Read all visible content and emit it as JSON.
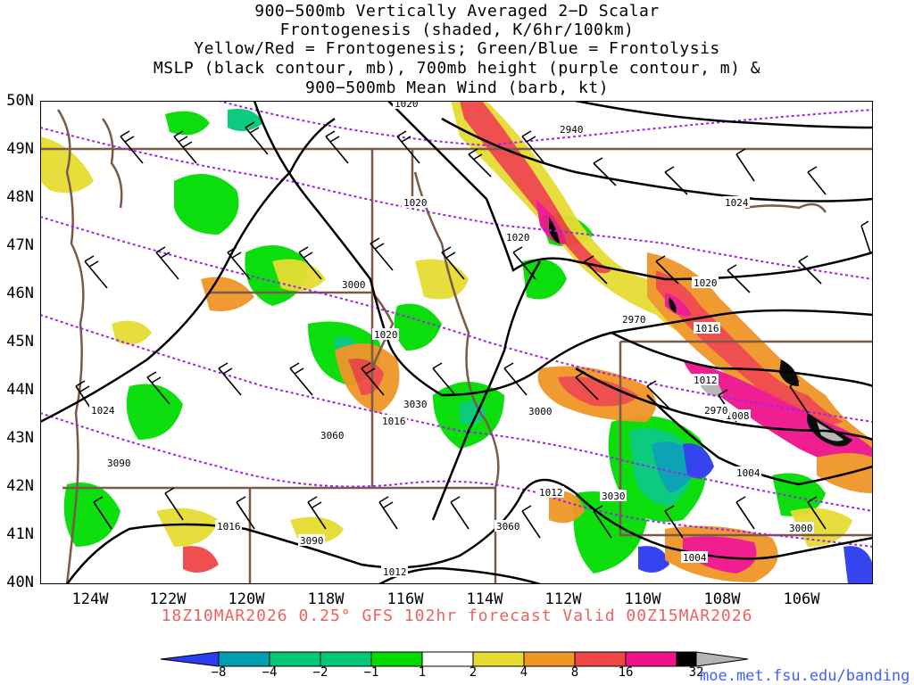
{
  "title_lines": [
    "900−500mb Vertically Averaged 2−D Scalar",
    "Frontogenesis (shaded, K/6hr/100km)",
    "Yellow/Red = Frontogenesis;  Green/Blue = Frontolysis",
    "MSLP (black contour, mb), 700mb height (purple contour, m) &",
    "900−500mb Mean Wind (barb, kt)"
  ],
  "lat_labels": [
    "50N",
    "49N",
    "48N",
    "47N",
    "46N",
    "45N",
    "44N",
    "43N",
    "42N",
    "41N",
    "40N"
  ],
  "lon_labels": [
    "124W",
    "122W",
    "120W",
    "118W",
    "116W",
    "114W",
    "112W",
    "110W",
    "108W",
    "106W"
  ],
  "subtitle": "18Z10MAR2026 0.25° GFS 102hr forecast Valid 00Z15MAR2026",
  "colorbar": {
    "labels": [
      "−8",
      "−4",
      "−2",
      "−1",
      "1",
      "2",
      "4",
      "8",
      "16",
      "32"
    ],
    "colors": [
      "#2a3cf0",
      "#00a0b0",
      "#00c878",
      "#00dc00",
      "#ffffff",
      "#e6dc32",
      "#f09628",
      "#f04646",
      "#f0148c",
      "#000000",
      "#b4b4b4"
    ]
  },
  "mslp_labels": [
    "1020",
    "1020",
    "1020",
    "1020",
    "1024",
    "1024",
    "1020",
    "1016",
    "1012",
    "1008",
    "1004",
    "1004",
    "1016",
    "1016",
    "1012",
    "1012",
    "1020"
  ],
  "height_labels": [
    "2940",
    "3000",
    "2970",
    "3030",
    "3000",
    "3060",
    "3090",
    "3090",
    "3060",
    "3030",
    "3000",
    "2970"
  ],
  "credit": "moe.met.fsu.edu/banding"
}
